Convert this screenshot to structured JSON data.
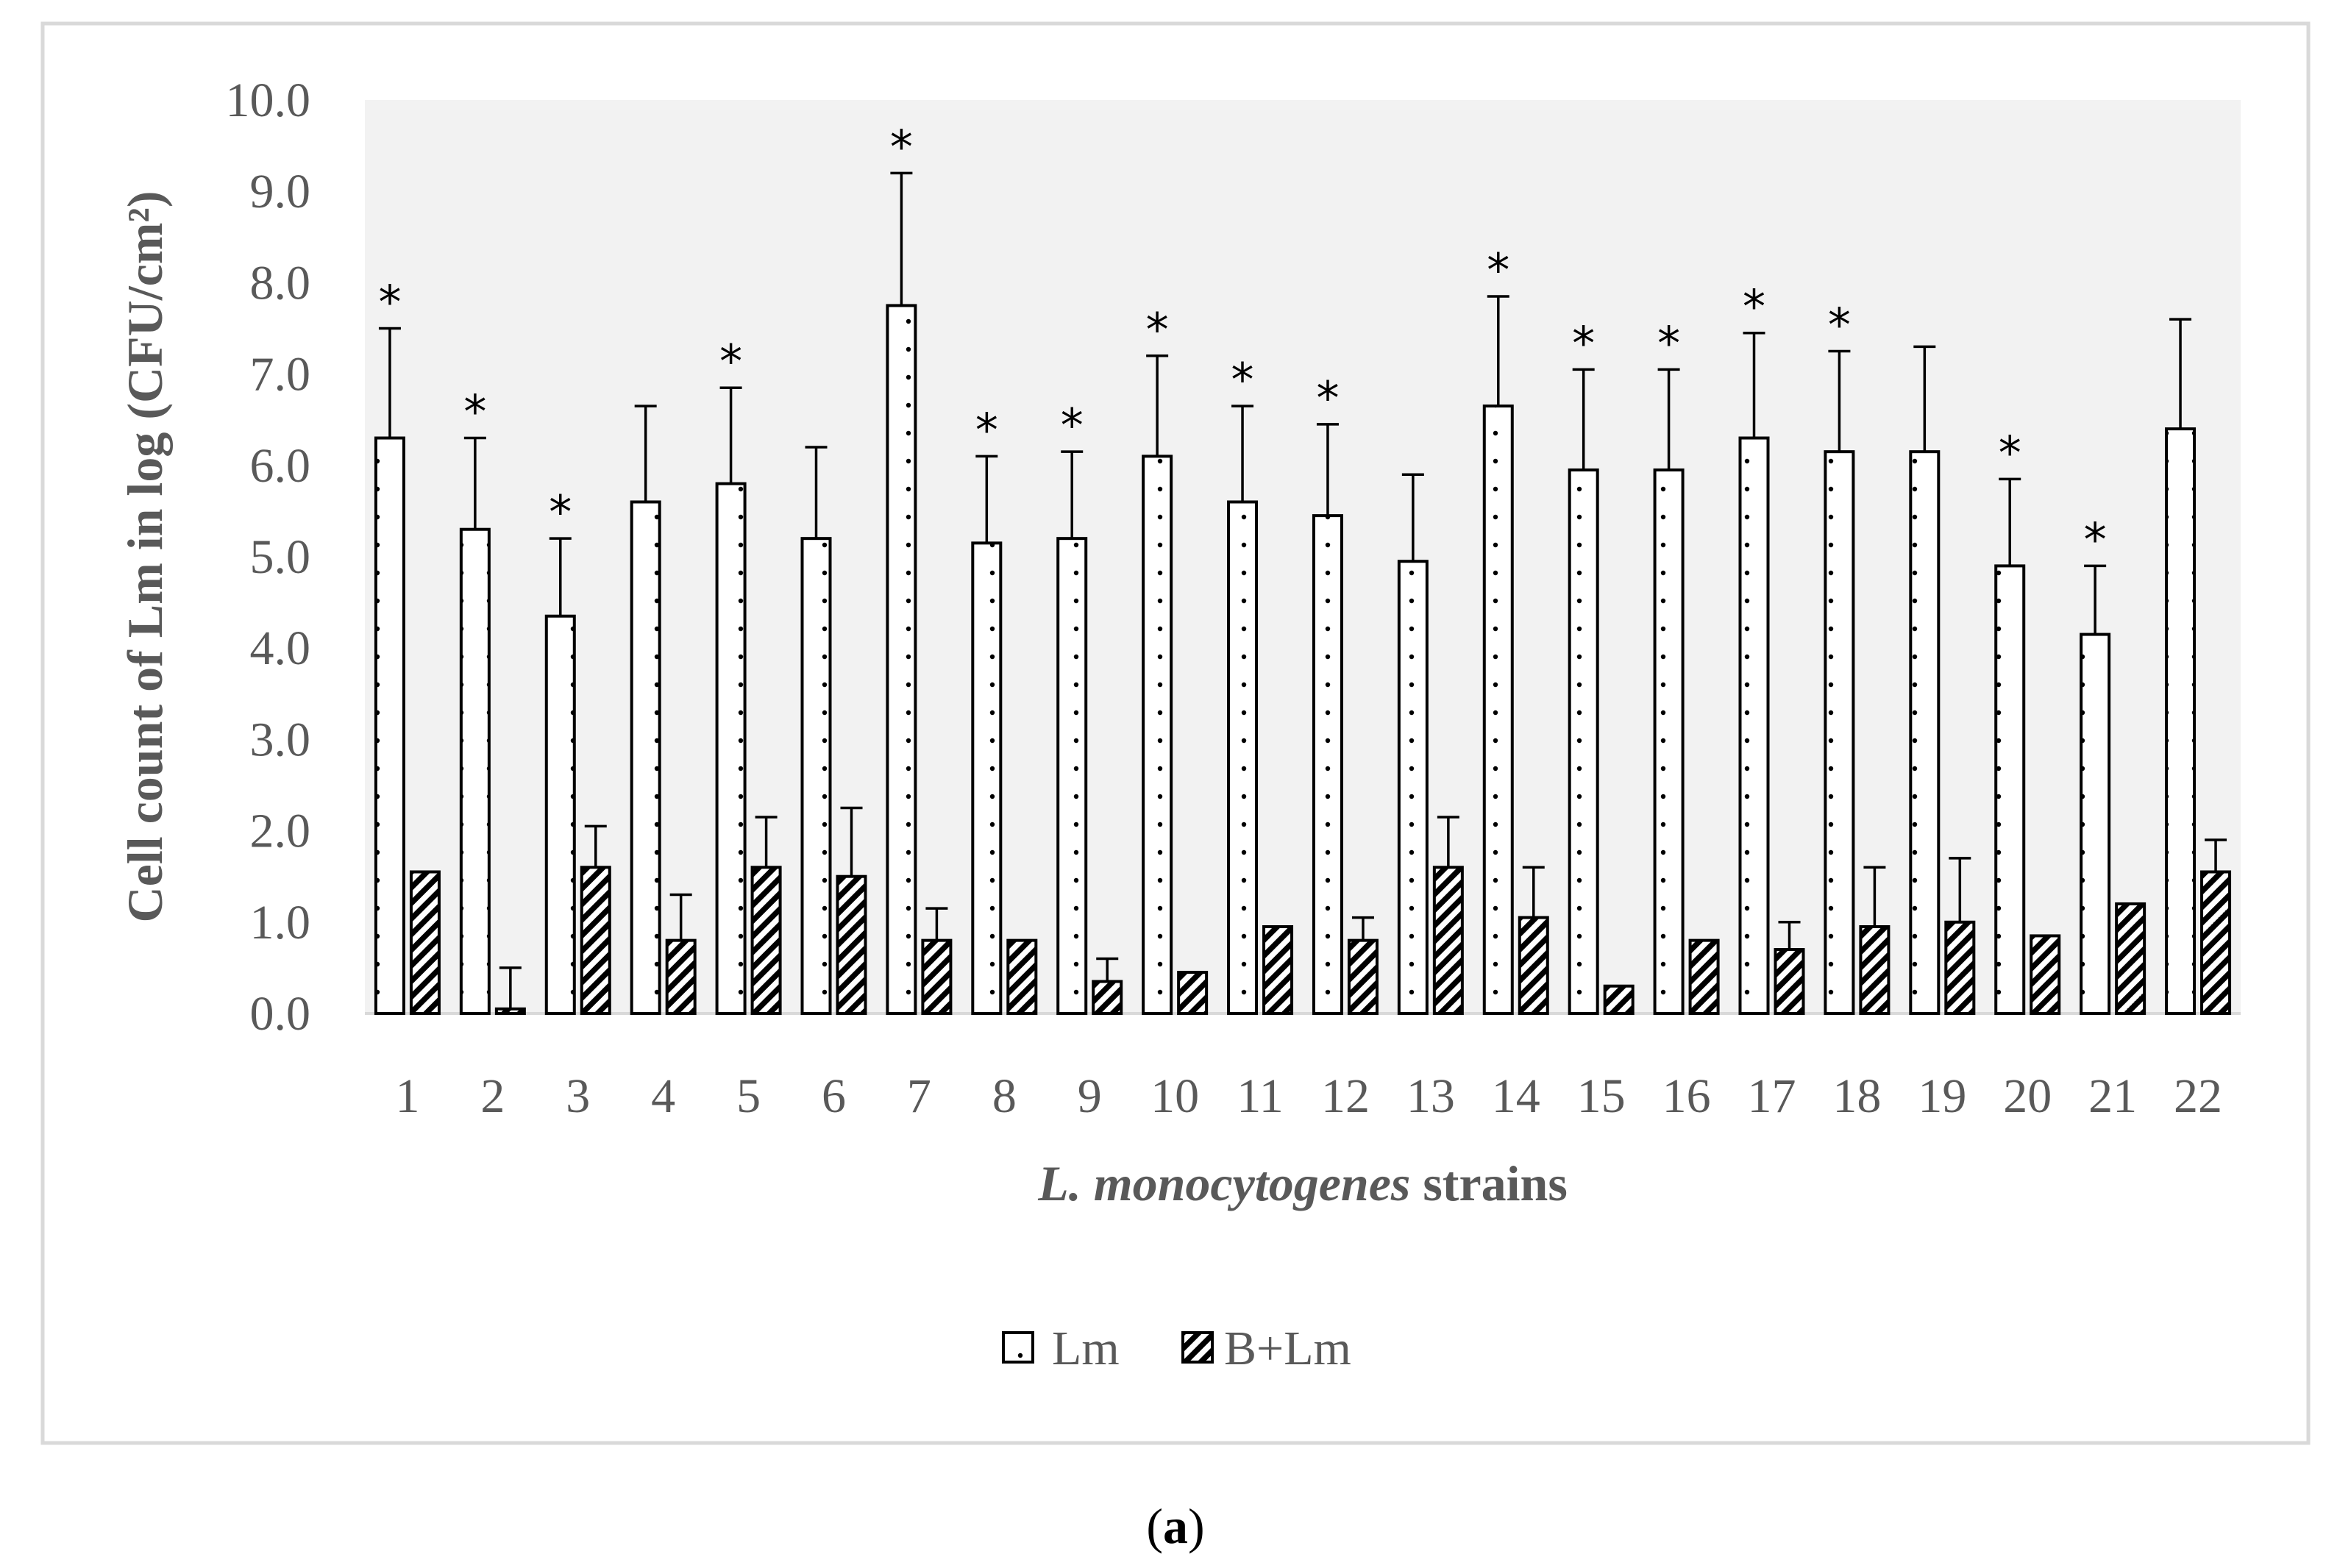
{
  "chart_data": {
    "type": "bar",
    "title": "",
    "xlabel_italic": "L. monocytogenes",
    "xlabel_rest": " strains",
    "ylabel": "Cell count of Lm in log (CFU/cm²)",
    "ylim": [
      0,
      10
    ],
    "yticks": [
      "0.0",
      "1.0",
      "2.0",
      "3.0",
      "4.0",
      "5.0",
      "6.0",
      "7.0",
      "8.0",
      "9.0",
      "10.0"
    ],
    "categories": [
      "1",
      "2",
      "3",
      "4",
      "5",
      "6",
      "7",
      "8",
      "9",
      "10",
      "11",
      "12",
      "13",
      "14",
      "15",
      "16",
      "17",
      "18",
      "19",
      "20",
      "21",
      "22"
    ],
    "series": [
      {
        "name": "Lm",
        "pattern": "dots",
        "values": [
          6.3,
          5.3,
          4.35,
          5.6,
          5.8,
          5.2,
          7.75,
          5.15,
          5.2,
          6.1,
          5.6,
          5.45,
          4.95,
          6.65,
          5.95,
          5.95,
          6.3,
          6.15,
          6.15,
          4.9,
          4.15,
          6.4
        ],
        "errors": [
          1.2,
          1.0,
          0.85,
          1.05,
          1.05,
          1.0,
          1.45,
          0.95,
          0.95,
          1.1,
          1.05,
          1.0,
          0.95,
          1.2,
          1.1,
          1.1,
          1.15,
          1.1,
          1.15,
          0.95,
          0.75,
          1.2
        ],
        "significant": [
          true,
          true,
          true,
          false,
          true,
          false,
          true,
          true,
          true,
          true,
          true,
          true,
          false,
          true,
          true,
          true,
          true,
          true,
          false,
          true,
          true,
          false
        ]
      },
      {
        "name": "B+Lm",
        "pattern": "diagonal",
        "values": [
          1.55,
          0.05,
          1.6,
          0.8,
          1.6,
          1.5,
          0.8,
          0.8,
          0.35,
          0.45,
          0.95,
          0.8,
          1.6,
          1.05,
          0.3,
          0.8,
          0.7,
          0.95,
          1.0,
          0.85,
          1.2,
          1.55
        ],
        "errors": [
          0,
          0.45,
          0.45,
          0.5,
          0.55,
          0.75,
          0.35,
          0,
          0.25,
          0,
          0,
          0.25,
          0.55,
          0.55,
          0,
          0,
          0.3,
          0.65,
          0.7,
          0,
          0,
          0.35
        ]
      }
    ],
    "significance_marker": "*",
    "legend": [
      "Lm",
      "B+Lm"
    ],
    "legend_position": "bottom"
  },
  "caption": {
    "open": "(",
    "letter": "a",
    "close": ")"
  }
}
